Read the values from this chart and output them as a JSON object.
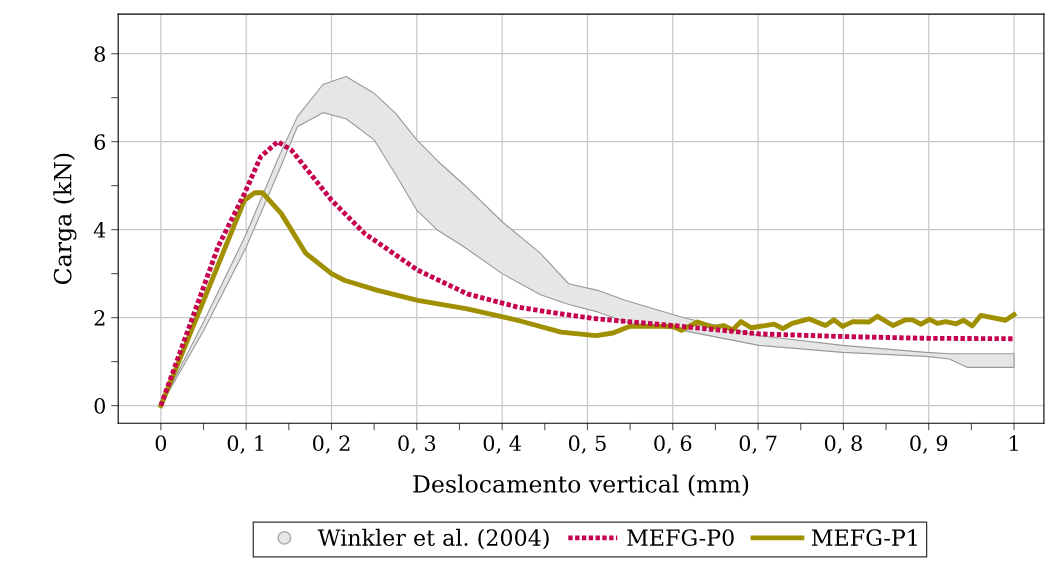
{
  "chart_data": {
    "type": "line",
    "xlabel": "Deslocamento vertical (mm)",
    "ylabel": "Carga (kN)",
    "xlim": [
      -0.05,
      1.035
    ],
    "ylim": [
      -0.4,
      8.9
    ],
    "xticks": [
      0,
      {
        "value": 0.05,
        "label": null
      },
      {
        "value": 0.1,
        "label": "0, 1"
      },
      {
        "value": 0.15,
        "label": null
      },
      {
        "value": 0.2,
        "label": "0, 2"
      },
      {
        "value": 0.25,
        "label": null
      },
      {
        "value": 0.3,
        "label": "0, 3"
      },
      {
        "value": 0.35,
        "label": null
      },
      {
        "value": 0.4,
        "label": "0, 4"
      },
      {
        "value": 0.45,
        "label": null
      },
      {
        "value": 0.5,
        "label": "0, 5"
      },
      {
        "value": 0.55,
        "label": null
      },
      {
        "value": 0.6,
        "label": "0, 6"
      },
      {
        "value": 0.65,
        "label": null
      },
      {
        "value": 0.7,
        "label": "0, 7"
      },
      {
        "value": 0.75,
        "label": null
      },
      {
        "value": 0.8,
        "label": "0, 8"
      },
      {
        "value": 0.85,
        "label": null
      },
      {
        "value": 0.9,
        "label": "0, 9"
      },
      {
        "value": 0.95,
        "label": null
      },
      1
    ],
    "yticks": [
      0,
      {
        "value": 1,
        "label": null
      },
      2,
      {
        "value": 3,
        "label": null
      },
      4,
      {
        "value": 5,
        "label": null
      },
      6,
      {
        "value": 7,
        "label": null
      },
      8
    ],
    "grid": true,
    "legend": "bottom",
    "series": [
      {
        "name": "Winkler et al. (2004)",
        "type": "area",
        "color": "#e6e6e6",
        "x": [
          0,
          0.05,
          0.1,
          0.137,
          0.16,
          0.19,
          0.217,
          0.25,
          0.275,
          0.3,
          0.325,
          0.356,
          0.4,
          0.445,
          0.478,
          0.512,
          0.545,
          0.611,
          0.701,
          0.799,
          0.897,
          0.924,
          0.945,
          1.0
        ],
        "values": [
          null,
          null,
          null,
          null,
          null,
          null,
          null,
          null,
          null,
          null,
          null,
          null,
          null,
          null,
          null,
          null,
          null,
          null,
          null,
          null,
          null,
          null,
          null,
          null
        ],
        "upper": [
          0,
          1.9,
          3.9,
          5.6,
          6.57,
          7.3,
          7.48,
          7.1,
          6.65,
          6.04,
          5.55,
          5.01,
          4.18,
          3.46,
          2.77,
          2.62,
          2.39,
          2.01,
          1.59,
          1.37,
          1.21,
          1.18,
          1.18,
          1.18
        ],
        "lower": [
          0,
          1.7,
          3.6,
          5.27,
          6.34,
          6.66,
          6.52,
          6.04,
          5.26,
          4.44,
          3.98,
          3.6,
          3.0,
          2.52,
          2.3,
          2.13,
          1.9,
          1.71,
          1.37,
          1.21,
          1.12,
          1.06,
          0.87,
          0.87
        ]
      },
      {
        "name": "MEFG-P0",
        "line_style": "dotted",
        "color": "#c6004f",
        "x": [
          0,
          0.067,
          0.098,
          0.117,
          0.137,
          0.153,
          0.2,
          0.239,
          0.301,
          0.359,
          0.418,
          0.467,
          0.512,
          0.6,
          0.701,
          0.799,
          0.897,
          1.0
        ],
        "values": [
          0,
          3.61,
          4.82,
          5.66,
          6.0,
          5.81,
          4.67,
          3.91,
          3.08,
          2.54,
          2.24,
          2.09,
          1.97,
          1.82,
          1.63,
          1.57,
          1.53,
          1.52
        ]
      },
      {
        "name": "MEFG-P1",
        "line_style": "solid",
        "color": "#a09000",
        "x": [
          0,
          0.098,
          0.11,
          0.119,
          0.141,
          0.17,
          0.2,
          0.215,
          0.254,
          0.301,
          0.359,
          0.418,
          0.469,
          0.51,
          0.53,
          0.549,
          0.6,
          0.61,
          0.629,
          0.647,
          0.66,
          0.67,
          0.68,
          0.692,
          0.719,
          0.729,
          0.74,
          0.76,
          0.779,
          0.789,
          0.799,
          0.811,
          0.83,
          0.84,
          0.858,
          0.873,
          0.881,
          0.891,
          0.901,
          0.91,
          0.92,
          0.932,
          0.941,
          0.951,
          0.961,
          0.99,
          1.0
        ],
        "values": [
          0,
          4.67,
          4.84,
          4.84,
          4.37,
          3.46,
          3.0,
          2.85,
          2.62,
          2.39,
          2.2,
          1.94,
          1.67,
          1.59,
          1.65,
          1.8,
          1.8,
          1.71,
          1.9,
          1.78,
          1.82,
          1.72,
          1.91,
          1.77,
          1.85,
          1.75,
          1.87,
          1.97,
          1.82,
          1.95,
          1.8,
          1.91,
          1.9,
          2.03,
          1.82,
          1.95,
          1.95,
          1.85,
          1.96,
          1.87,
          1.91,
          1.86,
          1.94,
          1.81,
          2.05,
          1.94,
          2.07
        ]
      }
    ]
  }
}
